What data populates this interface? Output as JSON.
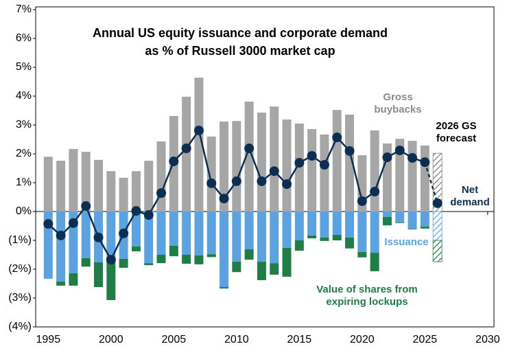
{
  "chart_data": {
    "type": "bar",
    "title": [
      "Annual US equity issuance and corporate demand",
      "as % of Russell 3000 market cap"
    ],
    "x": [
      1995,
      1996,
      1997,
      1998,
      1999,
      2000,
      2001,
      2002,
      2003,
      2004,
      2005,
      2006,
      2007,
      2008,
      2009,
      2010,
      2011,
      2012,
      2013,
      2014,
      2015,
      2016,
      2017,
      2018,
      2019,
      2020,
      2021,
      2022,
      2023,
      2024,
      2025,
      2026
    ],
    "series": [
      {
        "name": "Gross buybacks",
        "color": "#a6a6a6",
        "values": [
          1.9,
          1.76,
          2.17,
          2.07,
          1.79,
          1.4,
          1.17,
          1.4,
          1.76,
          2.43,
          3.31,
          3.98,
          4.64,
          2.6,
          3.12,
          3.14,
          3.81,
          3.43,
          3.64,
          3.19,
          3.05,
          2.86,
          2.67,
          3.52,
          3.36,
          1.95,
          2.81,
          2.36,
          2.52,
          2.45,
          2.29,
          2.02
        ]
      },
      {
        "name": "Issuance",
        "color": "#5ba3e0",
        "values": [
          -2.33,
          -2.43,
          -2.14,
          -1.62,
          -1.76,
          -1.57,
          -1.64,
          -1.21,
          -1.79,
          -1.5,
          -1.19,
          -1.5,
          -1.52,
          -1.48,
          -2.62,
          -1.74,
          -1.31,
          -1.74,
          -1.79,
          -1.26,
          -1.0,
          -0.83,
          -0.9,
          -0.81,
          -0.9,
          -1.4,
          -1.43,
          -0.19,
          -0.38,
          -0.6,
          -0.52,
          -1.0
        ]
      },
      {
        "name": "Value of shares from expiring lockups",
        "color": "#1e7e45",
        "values": [
          0,
          -0.14,
          -0.43,
          -0.29,
          -0.86,
          -1.5,
          -0.31,
          -0.17,
          -0.07,
          -0.29,
          -0.36,
          -0.31,
          -0.31,
          -0.1,
          -0.05,
          -0.36,
          -0.36,
          -0.64,
          -0.4,
          -1.0,
          -0.36,
          -0.1,
          -0.12,
          -0.19,
          -0.38,
          -0.19,
          -0.64,
          -0.29,
          -0.02,
          -0.02,
          -0.07,
          -0.74
        ]
      },
      {
        "name": "Net demand",
        "color": "#0b2e52",
        "type": "line",
        "values": [
          -0.43,
          -0.83,
          -0.4,
          0.19,
          -0.9,
          -1.67,
          -0.76,
          0.02,
          -0.12,
          0.64,
          1.74,
          2.19,
          2.81,
          0.98,
          0.45,
          1.05,
          2.19,
          1.05,
          1.4,
          0.95,
          1.69,
          1.93,
          1.62,
          2.57,
          2.1,
          0.36,
          0.69,
          1.88,
          2.12,
          1.86,
          1.71,
          0.29
        ]
      }
    ],
    "forecast_label": "2026 GS forecast",
    "xlim": [
      1994,
      2030.5
    ],
    "xticks": [
      1995,
      2000,
      2005,
      2010,
      2015,
      2020,
      2025,
      2030
    ],
    "ylim": [
      -4,
      7
    ],
    "yticks": [
      {
        "value": -4,
        "label": "(4%)"
      },
      {
        "value": -3,
        "label": "(3%)"
      },
      {
        "value": -2,
        "label": "(2%)"
      },
      {
        "value": -1,
        "label": "(1%)"
      },
      {
        "value": 0,
        "label": "0%"
      },
      {
        "value": 1,
        "label": "1%"
      },
      {
        "value": 2,
        "label": "2%"
      },
      {
        "value": 3,
        "label": "3%"
      },
      {
        "value": 4,
        "label": "4%"
      },
      {
        "value": 5,
        "label": "5%"
      },
      {
        "value": 6,
        "label": "6%"
      },
      {
        "value": 7,
        "label": "7%"
      }
    ]
  }
}
